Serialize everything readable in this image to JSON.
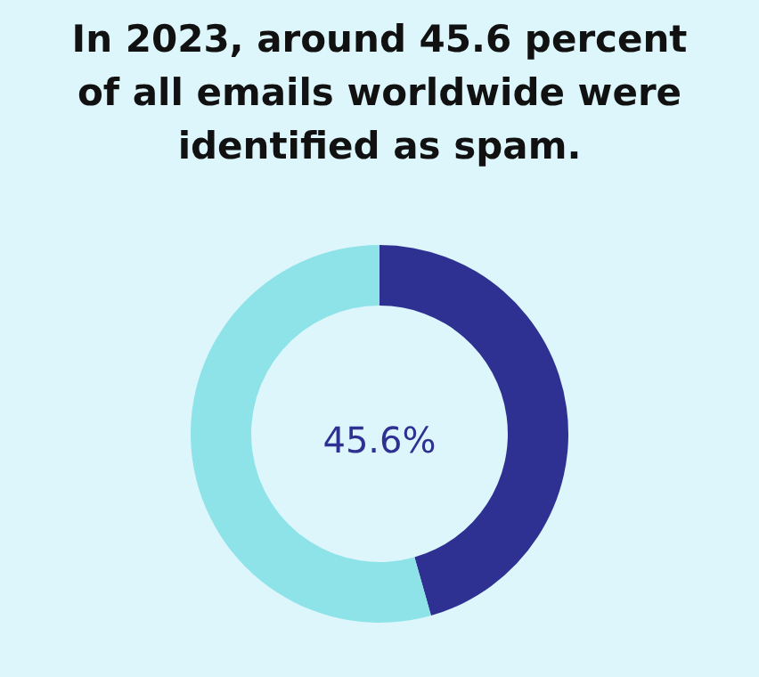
{
  "chart_data": {
    "type": "donut",
    "title": "In 2023, around 45.6 percent of all emails worldwide were identified as spam.",
    "categories": [
      null,
      null
    ],
    "values": [
      45.6,
      54.4
    ],
    "colors": [
      "#2e3192",
      "#8ee3e9"
    ],
    "annotations": [
      "45.6%"
    ],
    "legend": false
  }
}
